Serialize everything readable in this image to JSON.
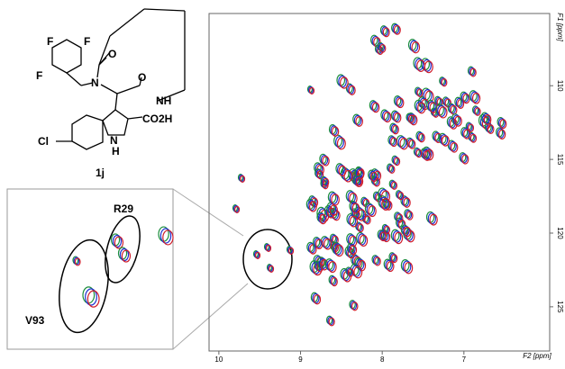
{
  "structure": {
    "atoms": [
      "F",
      "F",
      "F",
      "O",
      "N",
      "O",
      "NH",
      "CO2H",
      "Cl",
      "N",
      "H"
    ],
    "compound": "1j"
  },
  "inset": {
    "labels": [
      "R29",
      "V93"
    ]
  },
  "spectrum": {
    "x_label": "F2 [ppm]",
    "y_label": "F1 [ppm]",
    "xlim": [
      10.12,
      5.95
    ],
    "ylim": [
      105.1,
      128
    ],
    "xticks": [
      10,
      9,
      8,
      7
    ],
    "yticks": [
      110,
      115,
      120,
      125
    ]
  }
}
